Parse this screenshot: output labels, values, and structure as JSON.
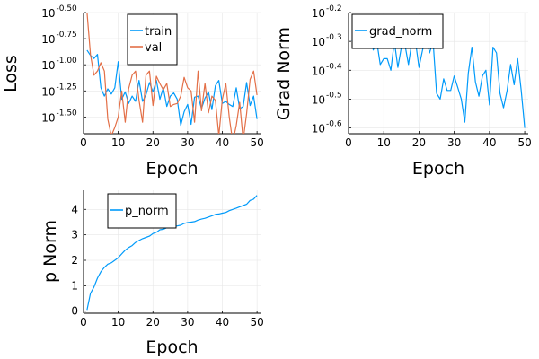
{
  "chart_data": [
    {
      "type": "line",
      "ylabel": "Loss",
      "xlabel": "Epoch",
      "yscale": "log10",
      "xlim": [
        0,
        51
      ],
      "ylim": [
        -1.66,
        -0.5
      ],
      "xticks": [
        0,
        10,
        20,
        30,
        40,
        50
      ],
      "xtick_labels": [
        "0",
        "10",
        "20",
        "30",
        "40",
        "50"
      ],
      "ytick_exponents": [
        -1.5,
        -1.25,
        -1.0,
        -0.75,
        -0.5
      ],
      "ytick_exponent_labels": [
        "-1.50",
        "-1.25",
        "-1.00",
        "-0.75",
        "-0.50"
      ],
      "ytick_base": "10",
      "grid": true,
      "legend_position": "top-right",
      "x": [
        1,
        2,
        3,
        4,
        5,
        6,
        7,
        8,
        9,
        10,
        11,
        12,
        13,
        14,
        15,
        16,
        17,
        18,
        19,
        20,
        21,
        22,
        23,
        24,
        25,
        26,
        27,
        28,
        29,
        30,
        31,
        32,
        33,
        34,
        35,
        36,
        37,
        38,
        39,
        40,
        41,
        42,
        43,
        44,
        45,
        46,
        47,
        48,
        49,
        50
      ],
      "series": [
        {
          "name": "train",
          "color": "#009AFA",
          "values": [
            -0.86,
            -0.91,
            -0.94,
            -0.9,
            -1.22,
            -1.3,
            -1.23,
            -1.28,
            -1.22,
            -0.97,
            -1.33,
            -1.26,
            -1.37,
            -1.3,
            -1.35,
            -1.15,
            -1.35,
            -1.29,
            -1.17,
            -1.26,
            -1.15,
            -1.33,
            -1.22,
            -1.4,
            -1.3,
            -1.27,
            -1.33,
            -1.58,
            -1.45,
            -1.38,
            -1.57,
            -1.31,
            -1.3,
            -1.42,
            -1.32,
            -1.26,
            -1.43,
            -1.2,
            -1.15,
            -1.37,
            -1.35,
            -1.38,
            -1.4,
            -1.22,
            -1.42,
            -1.4,
            -1.17,
            -1.39,
            -1.3,
            -1.52
          ]
        },
        {
          "name": "val",
          "color": "#E36F47",
          "values": [
            -0.5,
            -0.9,
            -1.1,
            -1.06,
            -0.98,
            -1.06,
            -1.52,
            -1.68,
            -1.6,
            -1.5,
            -1.25,
            -1.55,
            -1.23,
            -1.1,
            -1.06,
            -1.34,
            -1.55,
            -1.1,
            -1.06,
            -1.39,
            -1.11,
            -1.18,
            -1.24,
            -1.18,
            -1.4,
            -1.38,
            -1.37,
            -1.3,
            -1.12,
            -1.22,
            -1.25,
            -1.55,
            -1.06,
            -1.44,
            -1.18,
            -1.46,
            -1.3,
            -1.34,
            -1.68,
            -1.33,
            -1.18,
            -1.5,
            -1.74,
            -1.58,
            -1.36,
            -1.72,
            -1.47,
            -1.14,
            -1.06,
            -1.29
          ]
        }
      ]
    },
    {
      "type": "line",
      "ylabel": "Grad Norm",
      "xlabel": "Epoch",
      "yscale": "log10",
      "xlim": [
        0,
        51
      ],
      "ylim": [
        -0.62,
        -0.2
      ],
      "xticks": [
        0,
        10,
        20,
        30,
        40,
        50
      ],
      "xtick_labels": [
        "0",
        "10",
        "20",
        "30",
        "40",
        "50"
      ],
      "ytick_exponents": [
        -0.6,
        -0.5,
        -0.4,
        -0.3,
        -0.2
      ],
      "ytick_exponent_labels": [
        "-0.6",
        "-0.5",
        "-0.4",
        "-0.3",
        "-0.2"
      ],
      "ytick_base": "10",
      "grid": true,
      "legend_position": "top-left",
      "x": [
        1,
        2,
        3,
        4,
        5,
        6,
        7,
        8,
        9,
        10,
        11,
        12,
        13,
        14,
        15,
        16,
        17,
        18,
        19,
        20,
        21,
        22,
        23,
        24,
        25,
        26,
        27,
        28,
        29,
        30,
        31,
        32,
        33,
        34,
        35,
        36,
        37,
        38,
        39,
        40,
        41,
        42,
        43,
        44,
        45,
        46,
        47,
        48,
        49,
        50
      ],
      "series": [
        {
          "name": "grad_norm",
          "color": "#009AFA",
          "values": [
            -0.3,
            -0.22,
            -0.25,
            -0.24,
            -0.22,
            -0.22,
            -0.33,
            -0.3,
            -0.38,
            -0.36,
            -0.36,
            -0.4,
            -0.3,
            -0.39,
            -0.32,
            -0.31,
            -0.38,
            -0.3,
            -0.3,
            -0.39,
            -0.33,
            -0.28,
            -0.34,
            -0.3,
            -0.48,
            -0.5,
            -0.43,
            -0.47,
            -0.47,
            -0.42,
            -0.46,
            -0.5,
            -0.58,
            -0.41,
            -0.32,
            -0.44,
            -0.49,
            -0.42,
            -0.4,
            -0.52,
            -0.32,
            -0.34,
            -0.48,
            -0.53,
            -0.47,
            -0.38,
            -0.45,
            -0.36,
            -0.47,
            -0.6
          ]
        }
      ]
    },
    {
      "type": "line",
      "ylabel": "p Norm",
      "xlabel": "Epoch",
      "yscale": "linear",
      "xlim": [
        0,
        51
      ],
      "ylim": [
        -0.08,
        4.75
      ],
      "xticks": [
        0,
        10,
        20,
        30,
        40,
        50
      ],
      "xtick_labels": [
        "0",
        "10",
        "20",
        "30",
        "40",
        "50"
      ],
      "yticks": [
        0,
        1,
        2,
        3,
        4
      ],
      "ytick_labels": [
        "0",
        "1",
        "2",
        "3",
        "4"
      ],
      "grid": true,
      "legend_position": "top-left",
      "x": [
        1,
        2,
        3,
        4,
        5,
        6,
        7,
        8,
        9,
        10,
        11,
        12,
        13,
        14,
        15,
        16,
        17,
        18,
        19,
        20,
        21,
        22,
        23,
        24,
        25,
        26,
        27,
        28,
        29,
        30,
        31,
        32,
        33,
        34,
        35,
        36,
        37,
        38,
        39,
        40,
        41,
        42,
        43,
        44,
        45,
        46,
        47,
        48,
        49,
        50
      ],
      "series": [
        {
          "name": "p_norm",
          "color": "#009AFA",
          "values": [
            0.05,
            0.7,
            0.95,
            1.3,
            1.55,
            1.72,
            1.85,
            1.9,
            2.0,
            2.1,
            2.25,
            2.4,
            2.5,
            2.58,
            2.7,
            2.78,
            2.85,
            2.9,
            2.95,
            3.05,
            3.1,
            3.2,
            3.22,
            3.28,
            3.3,
            3.32,
            3.35,
            3.38,
            3.45,
            3.48,
            3.5,
            3.52,
            3.58,
            3.62,
            3.65,
            3.7,
            3.75,
            3.8,
            3.82,
            3.85,
            3.88,
            3.95,
            4.0,
            4.05,
            4.1,
            4.15,
            4.2,
            4.35,
            4.4,
            4.55
          ]
        }
      ]
    }
  ]
}
